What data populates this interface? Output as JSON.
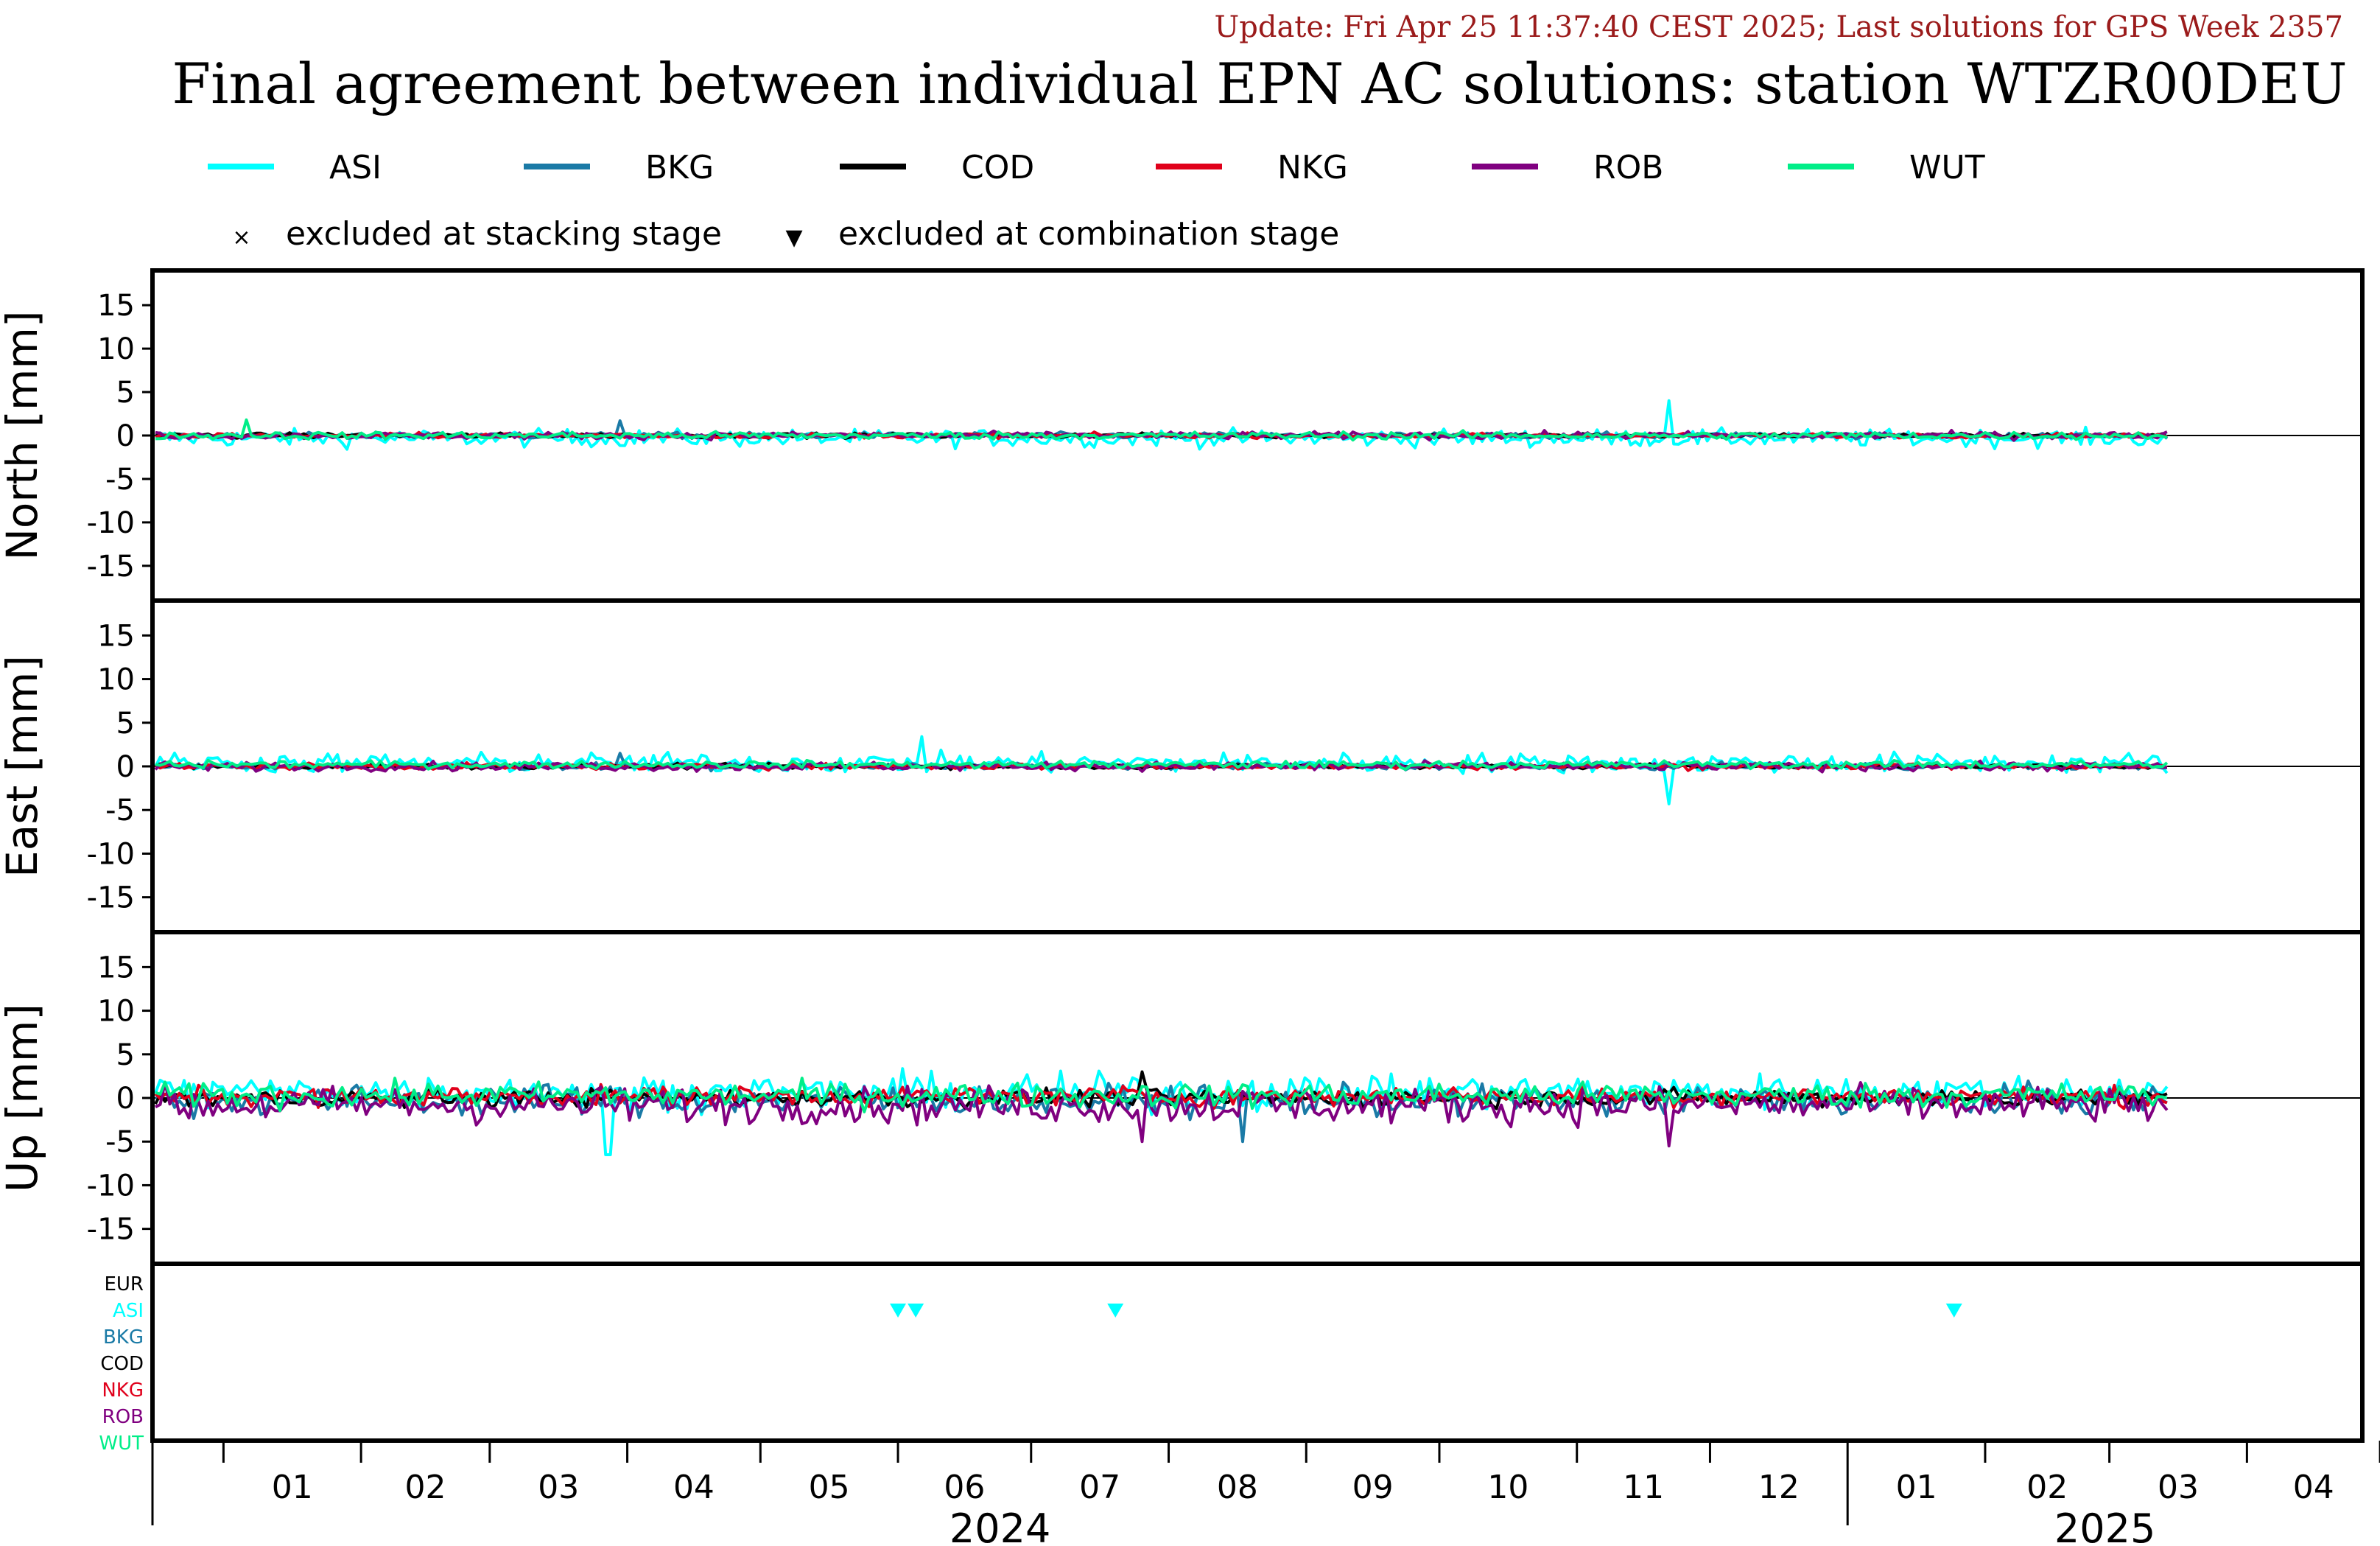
{
  "header": {
    "update": "Update: Fri Apr 25 11:37:40 CEST 2025; Last solutions for GPS Week 2357",
    "title": "Final agreement between individual EPN AC solutions: station WTZR00DEU"
  },
  "legend": {
    "series": [
      {
        "name": "ASI",
        "color": "#00ffff"
      },
      {
        "name": "BKG",
        "color": "#1a7aa6"
      },
      {
        "name": "COD",
        "color": "#000000"
      },
      {
        "name": "NKG",
        "color": "#e0001b"
      },
      {
        "name": "ROB",
        "color": "#800080"
      },
      {
        "name": "WUT",
        "color": "#00ee88"
      }
    ],
    "markers": [
      {
        "symbol": "×",
        "label": "excluded at stacking stage"
      },
      {
        "symbol": "▼",
        "label": "excluded at combination stage"
      }
    ]
  },
  "chart_data": [
    {
      "type": "line",
      "ylabel": "North [mm]",
      "ylim": [
        -19,
        19
      ],
      "yticks": [
        15,
        10,
        5,
        0,
        -5,
        -10,
        -15
      ],
      "series": [
        {
          "name": "ASI",
          "noise": 0.7,
          "bias": -0.3,
          "spikes": [
            {
              "x": 0.753,
              "y": 4.0
            }
          ]
        },
        {
          "name": "BKG",
          "noise": 0.25,
          "bias": 0.0,
          "spikes": [
            {
              "x": 0.23,
              "y": 1.7
            }
          ]
        },
        {
          "name": "COD",
          "noise": 0.2,
          "bias": 0.0,
          "spikes": []
        },
        {
          "name": "NKG",
          "noise": 0.2,
          "bias": 0.0,
          "spikes": []
        },
        {
          "name": "ROB",
          "noise": 0.3,
          "bias": 0.0,
          "spikes": []
        },
        {
          "name": "WUT",
          "noise": 0.3,
          "bias": 0.0,
          "spikes": [
            {
              "x": 0.045,
              "y": 1.8
            }
          ]
        }
      ]
    },
    {
      "type": "line",
      "ylabel": "East [mm]",
      "ylim": [
        -19,
        19
      ],
      "yticks": [
        15,
        10,
        5,
        0,
        -5,
        -10,
        -15
      ],
      "series": [
        {
          "name": "ASI",
          "noise": 0.8,
          "bias": 0.4,
          "spikes": [
            {
              "x": 0.38,
              "y": 3.4
            },
            {
              "x": 0.752,
              "y": -4.3
            }
          ]
        },
        {
          "name": "BKG",
          "noise": 0.25,
          "bias": 0.0,
          "spikes": [
            {
              "x": 0.23,
              "y": 1.5
            }
          ]
        },
        {
          "name": "COD",
          "noise": 0.2,
          "bias": 0.0,
          "spikes": []
        },
        {
          "name": "NKG",
          "noise": 0.25,
          "bias": 0.0,
          "spikes": []
        },
        {
          "name": "ROB",
          "noise": 0.35,
          "bias": 0.0,
          "spikes": []
        },
        {
          "name": "WUT",
          "noise": 0.3,
          "bias": 0.2,
          "spikes": []
        }
      ]
    },
    {
      "type": "line",
      "ylabel": "Up [mm]",
      "ylim": [
        -19,
        19
      ],
      "yticks": [
        15,
        10,
        5,
        0,
        -5,
        -10,
        -15
      ],
      "series": [
        {
          "name": "ASI",
          "noise": 1.4,
          "bias": 0.7,
          "spikes": [
            {
              "x": 0.225,
              "y": -6.5
            }
          ]
        },
        {
          "name": "BKG",
          "noise": 1.2,
          "bias": -0.3,
          "spikes": [
            {
              "x": 0.54,
              "y": -5.0
            }
          ]
        },
        {
          "name": "COD",
          "noise": 0.7,
          "bias": 0.0,
          "spikes": [
            {
              "x": 0.49,
              "y": 3.0
            }
          ]
        },
        {
          "name": "NKG",
          "noise": 0.8,
          "bias": 0.2,
          "spikes": []
        },
        {
          "name": "ROB",
          "noise": 1.5,
          "bias": -0.8,
          "spikes": [
            {
              "x": 0.49,
              "y": -5.0
            },
            {
              "x": 0.753,
              "y": -5.5
            }
          ]
        },
        {
          "name": "WUT",
          "noise": 1.0,
          "bias": 0.3,
          "spikes": []
        }
      ]
    }
  ],
  "exclusion_panel": {
    "rows": [
      {
        "label": "EUR",
        "color": "#000000"
      },
      {
        "label": "ASI",
        "color": "#00ffff"
      },
      {
        "label": "BKG",
        "color": "#1a7aa6"
      },
      {
        "label": "COD",
        "color": "#000000"
      },
      {
        "label": "NKG",
        "color": "#e0001b"
      },
      {
        "label": "ROB",
        "color": "#800080"
      },
      {
        "label": "WUT",
        "color": "#00ee88"
      }
    ],
    "markers": [
      {
        "ac": "ASI",
        "date": "2024-06-01"
      },
      {
        "ac": "ASI",
        "date": "2024-06-05"
      },
      {
        "ac": "ASI",
        "date": "2024-07-20"
      },
      {
        "ac": "ASI",
        "date": "2025-01-25"
      }
    ]
  },
  "x_axis": {
    "months": [
      "01",
      "02",
      "03",
      "04",
      "05",
      "06",
      "07",
      "08",
      "09",
      "10",
      "11",
      "12",
      "01",
      "02",
      "03",
      "04"
    ],
    "years": [
      "2024",
      "2025"
    ],
    "start": "2023-12-16",
    "end": "2025-04-27"
  }
}
